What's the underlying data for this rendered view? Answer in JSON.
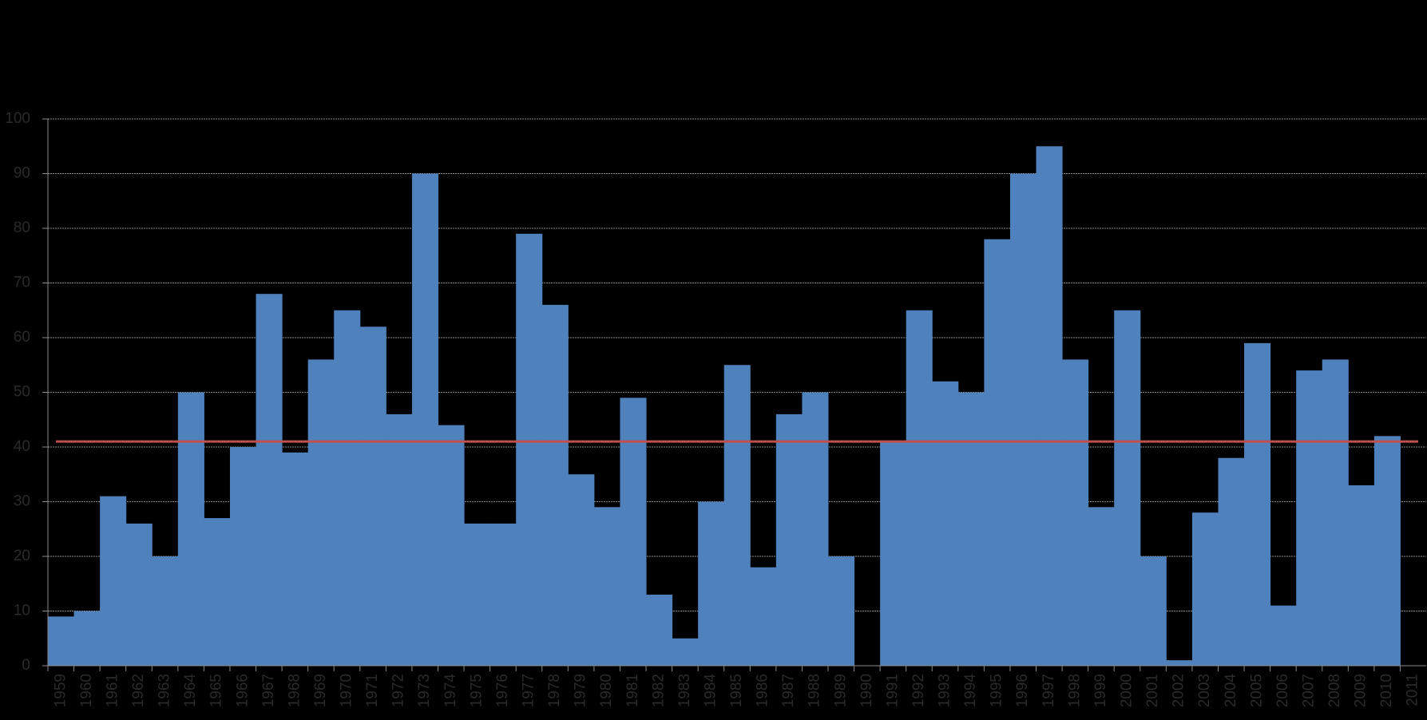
{
  "chart_data": {
    "type": "bar",
    "categories": [
      "1959",
      "1960",
      "1961",
      "1962",
      "1963",
      "1964",
      "1965",
      "1966",
      "1967",
      "1968",
      "1969",
      "1970",
      "1971",
      "1972",
      "1973",
      "1974",
      "1975",
      "1976",
      "1977",
      "1978",
      "1979",
      "1980",
      "1981",
      "1982",
      "1983",
      "1984",
      "1985",
      "1986",
      "1987",
      "1988",
      "1989",
      "1990",
      "1991",
      "1992",
      "1993",
      "1994",
      "1995",
      "1996",
      "1997",
      "1998",
      "1999",
      "2000",
      "2001",
      "2002",
      "2003",
      "2004",
      "2005",
      "2006",
      "2007",
      "2008",
      "2009",
      "2010",
      "2011"
    ],
    "values": [
      9,
      10,
      31,
      26,
      20,
      50,
      27,
      40,
      68,
      39,
      56,
      65,
      62,
      46,
      90,
      44,
      26,
      26,
      79,
      66,
      35,
      29,
      49,
      13,
      5,
      30,
      55,
      18,
      46,
      50,
      20,
      0,
      41,
      65,
      52,
      50,
      78,
      90,
      95,
      56,
      29,
      65,
      20,
      1,
      28,
      38,
      59,
      11,
      54,
      56,
      33,
      42,
      null
    ],
    "color": "#4f81bd",
    "reference_line": {
      "value": 41,
      "color": "#c0504d"
    },
    "ylim": [
      0,
      100
    ],
    "yticks": [
      0,
      10,
      20,
      30,
      40,
      50,
      60,
      70,
      80,
      90,
      100
    ],
    "grid": true
  }
}
